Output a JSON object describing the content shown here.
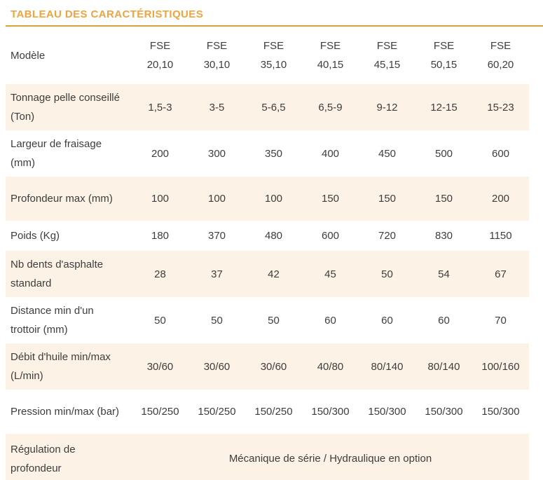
{
  "page": {
    "title": "TABLEAU DES CARACTÉRISTIQUES"
  },
  "colors": {
    "accent_orange": "#EFA43D",
    "rule_gold": "#D2A63E",
    "row_shade": "#FCF2E5",
    "text": "#3D3D3D"
  },
  "table": {
    "header": {
      "label": "Modèle",
      "models": [
        {
          "line1": "FSE",
          "line2": "20,10"
        },
        {
          "line1": "FSE",
          "line2": "30,10"
        },
        {
          "line1": "FSE",
          "line2": "35,10"
        },
        {
          "line1": "FSE",
          "line2": "40,15"
        },
        {
          "line1": "FSE",
          "line2": "45,15"
        },
        {
          "line1": "FSE",
          "line2": "50,15"
        },
        {
          "line1": "FSE",
          "line2": "60,20"
        }
      ]
    },
    "rows": [
      {
        "label": "Tonnage pelle conseillé (Ton)",
        "values": [
          "1,5-3",
          "3-5",
          "5-6,5",
          "6,5-9",
          "9-12",
          "12-15",
          "15-23"
        ]
      },
      {
        "label": "Largeur de fraisage (mm)",
        "values": [
          "200",
          "300",
          "350",
          "400",
          "450",
          "500",
          "600"
        ]
      },
      {
        "label": "Profondeur max (mm)",
        "values": [
          "100",
          "100",
          "100",
          "150",
          "150",
          "150",
          "200"
        ]
      },
      {
        "label": "Poids (Kg)",
        "values": [
          "180",
          "370",
          "480",
          "600",
          "720",
          "830",
          "1150"
        ],
        "compact": true
      },
      {
        "label": "Nb dents d'asphalte standard",
        "values": [
          "28",
          "37",
          "42",
          "45",
          "50",
          "54",
          "67"
        ]
      },
      {
        "label": "Distance min d'un trottoir (mm)",
        "values": [
          "50",
          "50",
          "50",
          "60",
          "60",
          "60",
          "70"
        ]
      },
      {
        "label": "Débit d'huile min/max (L/min)",
        "values": [
          "30/60",
          "30/60",
          "30/60",
          "40/80",
          "80/140",
          "80/140",
          "100/160"
        ]
      },
      {
        "label": "Pression min/max (bar)",
        "values": [
          "150/250",
          "150/250",
          "150/250",
          "150/300",
          "150/300",
          "150/300",
          "150/300"
        ]
      },
      {
        "label": "Régulation de profondeur",
        "span_value": "Mécanique de série / Hydraulique en option"
      }
    ]
  }
}
